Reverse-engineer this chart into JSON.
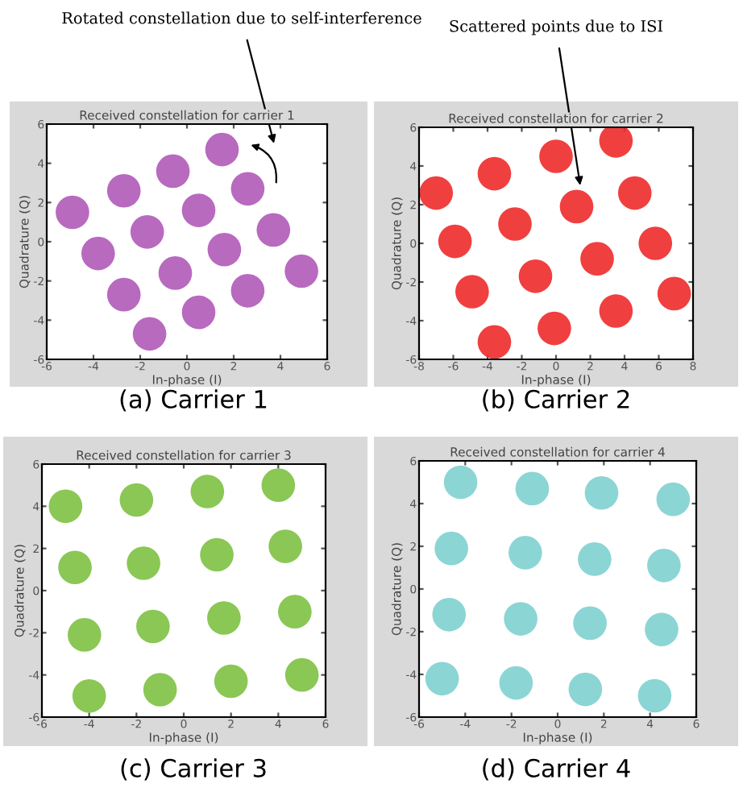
{
  "chart_data": [
    {
      "type": "scatter",
      "title": "Received constellation for carrier 1",
      "subtitle": "(a) Carrier 1",
      "xlabel": "In-phase (I)",
      "ylabel": "Quadrature (Q)",
      "xlim": [
        -6,
        6
      ],
      "ylim": [
        -6,
        6
      ],
      "xticks": [
        -6,
        -4,
        -2,
        0,
        2,
        4,
        6
      ],
      "yticks": [
        -6,
        -4,
        -2,
        0,
        2,
        4,
        6
      ],
      "grid": false,
      "legend": false,
      "marker": "circle",
      "annotations": [
        "Rotated constellation due to self-interference"
      ],
      "series": [
        {
          "color": "#b05ab8",
          "x": [
            1.5,
            -0.6,
            2.6,
            -2.7,
            -4.9,
            0.5,
            -1.7,
            3.7,
            1.6,
            -3.8,
            -0.5,
            4.9,
            2.6,
            -2.7,
            0.5,
            -1.6
          ],
          "values": [
            4.7,
            3.6,
            2.7,
            2.6,
            1.5,
            1.6,
            0.5,
            0.6,
            -0.4,
            -0.6,
            -1.6,
            -1.5,
            -2.5,
            -2.7,
            -3.6,
            -4.7
          ]
        }
      ]
    },
    {
      "type": "scatter",
      "title": "Received constellation for carrier 2",
      "subtitle": "(b) Carrier 2",
      "xlabel": "In-phase (I)",
      "ylabel": "Quadrature (Q)",
      "xlim": [
        -8,
        8
      ],
      "ylim": [
        -6,
        6
      ],
      "xticks": [
        -8,
        -6,
        -4,
        -2,
        0,
        2,
        4,
        6,
        8
      ],
      "yticks": [
        -6,
        -4,
        -2,
        0,
        2,
        4,
        6
      ],
      "grid": false,
      "legend": false,
      "marker": "circle",
      "annotations": [
        "Scattered points due to ISI"
      ],
      "series": [
        {
          "color": "#ee2a2a",
          "x": [
            3.5,
            0.0,
            -3.6,
            -7.0,
            4.6,
            1.2,
            -2.4,
            -5.9,
            5.8,
            2.4,
            -1.2,
            -4.9,
            6.9,
            3.5,
            -0.1,
            -3.6
          ],
          "values": [
            5.3,
            4.5,
            3.6,
            2.6,
            2.6,
            1.9,
            1.0,
            0.1,
            0.0,
            -0.8,
            -1.7,
            -2.5,
            -2.6,
            -3.5,
            -4.4,
            -5.1
          ]
        }
      ]
    },
    {
      "type": "scatter",
      "title": "Received constellation for carrier 3",
      "subtitle": "(c) Carrier 3",
      "xlabel": "In-phase (I)",
      "ylabel": "Quadrature (Q)",
      "xlim": [
        -6,
        6
      ],
      "ylim": [
        -6,
        6
      ],
      "xticks": [
        -6,
        -4,
        -2,
        0,
        2,
        4,
        6
      ],
      "yticks": [
        -6,
        -4,
        -2,
        0,
        2,
        4,
        6
      ],
      "grid": false,
      "legend": false,
      "marker": "circle",
      "series": [
        {
          "color": "#7dc142",
          "x": [
            -5.0,
            -2.0,
            1.0,
            4.0,
            -4.6,
            -1.7,
            1.4,
            4.3,
            -4.2,
            -1.3,
            1.7,
            4.7,
            -4.0,
            -1.0,
            2.0,
            5.0
          ],
          "values": [
            4.0,
            4.3,
            4.7,
            5.0,
            1.1,
            1.3,
            1.7,
            2.1,
            -2.1,
            -1.7,
            -1.3,
            -1.0,
            -5.0,
            -4.7,
            -4.3,
            -4.0
          ]
        }
      ]
    },
    {
      "type": "scatter",
      "title": "Received constellation for carrier 4",
      "subtitle": "(d) Carrier 4",
      "xlabel": "In-phase (I)",
      "ylabel": "Quadrature (Q)",
      "xlim": [
        -6,
        6
      ],
      "ylim": [
        -6,
        6
      ],
      "xticks": [
        -6,
        -4,
        -2,
        0,
        2,
        4,
        6
      ],
      "yticks": [
        -6,
        -4,
        -2,
        0,
        2,
        4,
        6
      ],
      "grid": false,
      "legend": false,
      "marker": "circle",
      "series": [
        {
          "color": "#7fd0d0",
          "x": [
            -4.2,
            -1.1,
            1.9,
            5.0,
            -4.6,
            -1.4,
            1.6,
            4.6,
            -4.7,
            -1.6,
            1.4,
            4.5,
            -5.0,
            -1.8,
            1.2,
            4.2
          ],
          "values": [
            5.0,
            4.7,
            4.5,
            4.2,
            1.9,
            1.7,
            1.4,
            1.1,
            -1.2,
            -1.4,
            -1.6,
            -1.9,
            -4.2,
            -4.4,
            -4.7,
            -5.0
          ]
        }
      ]
    }
  ]
}
